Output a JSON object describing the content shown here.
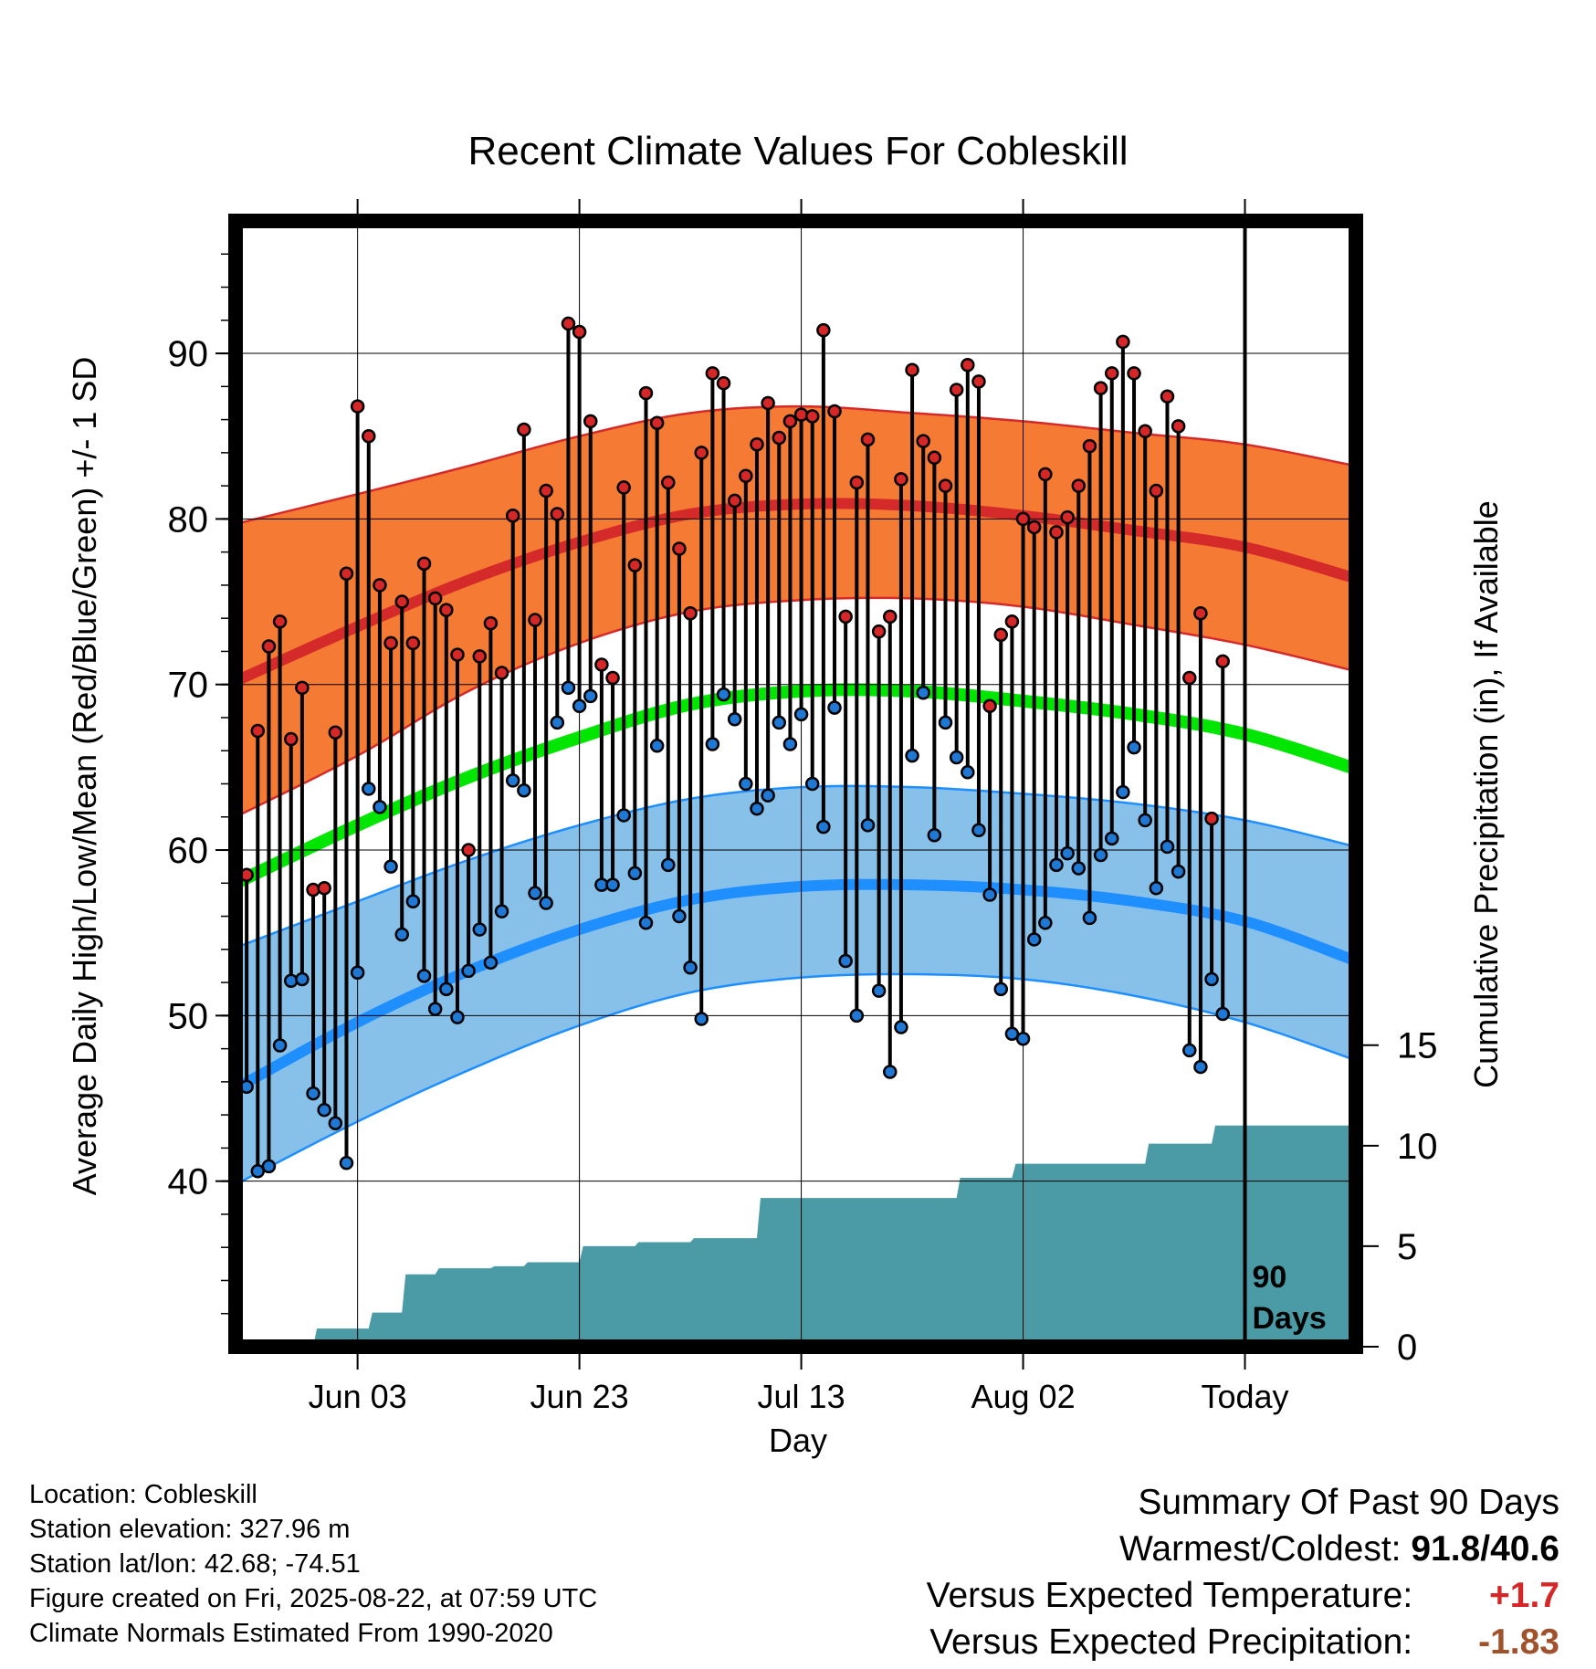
{
  "chart_data": {
    "type": "line",
    "title": "Recent Climate Values For Cobleskill",
    "xlabel": "Day",
    "ylabel_left": "Average Daily High/Low/Mean (Red/Blue/Green) +/- 1 SD",
    "ylabel_right": "Cumulative Precipitation (in), If Available",
    "x_range": [
      "2025-05-23",
      "2025-09-01"
    ],
    "x_ticks": [
      {
        "date": "2025-06-03",
        "label": "Jun 03"
      },
      {
        "date": "2025-06-23",
        "label": "Jun 23"
      },
      {
        "date": "2025-07-13",
        "label": "Jul 13"
      },
      {
        "date": "2025-08-02",
        "label": "Aug 02"
      },
      {
        "date": "2025-08-22",
        "label": "Today"
      }
    ],
    "today": "2025-08-22",
    "today_label": "90 Days",
    "y_left": {
      "min": 30,
      "max": 98,
      "ticks": [
        40,
        50,
        60,
        70,
        80,
        90
      ]
    },
    "y_right": {
      "min": 0,
      "max": 56,
      "ticks": [
        0,
        5,
        10,
        15
      ]
    },
    "grid": true,
    "normals": {
      "x": [
        "2025-05-23",
        "2025-06-03",
        "2025-06-13",
        "2025-06-23",
        "2025-07-03",
        "2025-07-13",
        "2025-07-23",
        "2025-08-02",
        "2025-08-12",
        "2025-08-22",
        "2025-09-01"
      ],
      "high_mean": [
        70.2,
        73.5,
        76.3,
        78.6,
        80.3,
        80.9,
        80.8,
        80.2,
        79.3,
        78.3,
        76.4
      ],
      "high_upper": [
        79.7,
        81.5,
        83.2,
        85.0,
        86.4,
        86.8,
        86.4,
        85.9,
        85.2,
        84.5,
        83.2
      ],
      "high_lower": [
        62.0,
        65.7,
        69.6,
        72.5,
        74.4,
        75.1,
        75.2,
        74.7,
        73.6,
        72.4,
        70.8
      ],
      "low_mean": [
        45.6,
        49.6,
        52.7,
        55.2,
        57.0,
        57.8,
        57.9,
        57.6,
        56.9,
        55.7,
        53.3
      ],
      "low_upper": [
        54.1,
        56.9,
        59.4,
        61.5,
        63.1,
        63.8,
        63.8,
        63.4,
        62.8,
        61.8,
        60.2
      ],
      "low_lower": [
        39.8,
        43.6,
        46.7,
        49.4,
        51.4,
        52.3,
        52.5,
        52.2,
        51.2,
        49.6,
        47.3
      ],
      "mean_mean": [
        58.0,
        61.5,
        64.4,
        66.8,
        68.8,
        69.6,
        69.6,
        69.0,
        68.2,
        67.0,
        64.9
      ],
      "colors": {
        "high_band": "#f57a33",
        "high_line": "#d42a2a",
        "low_band": "#87c1ea",
        "low_line": "#1f8fff",
        "mean_line": "#00e600"
      }
    },
    "daily": {
      "start_date": "2025-05-23",
      "high": [
        57.3,
        58.5,
        67.2,
        72.3,
        73.8,
        66.7,
        69.8,
        57.6,
        57.7,
        67.1,
        76.7,
        86.8,
        85.0,
        76.0,
        72.5,
        75.0,
        72.5,
        77.3,
        75.2,
        74.5,
        71.8,
        60.0,
        71.7,
        73.7,
        70.7,
        80.2,
        85.4,
        73.9,
        81.7,
        80.3,
        91.8,
        91.3,
        85.9,
        71.2,
        70.4,
        81.9,
        77.2,
        87.6,
        85.8,
        82.2,
        78.2,
        74.3,
        84.0,
        88.8,
        88.2,
        81.1,
        82.6,
        84.5,
        87.0,
        84.9,
        85.9,
        86.3,
        86.2,
        91.4,
        86.5,
        74.1,
        82.2,
        84.8,
        73.2,
        74.1,
        82.4,
        89.0,
        84.7,
        83.7,
        82.0,
        87.8,
        89.3,
        88.3,
        68.7,
        73.0,
        73.8,
        80.0,
        79.5,
        82.7,
        79.2,
        80.1,
        82.0,
        84.4,
        87.9,
        88.8,
        90.7,
        88.8,
        85.3,
        81.7,
        87.4,
        85.6,
        70.4,
        74.3,
        61.9,
        71.4
      ],
      "low": [
        45.2,
        45.7,
        40.6,
        40.9,
        48.2,
        52.1,
        52.2,
        45.3,
        44.3,
        43.5,
        41.1,
        52.6,
        63.7,
        62.6,
        59.0,
        54.9,
        56.9,
        52.4,
        50.4,
        51.6,
        49.9,
        52.7,
        55.2,
        53.2,
        56.3,
        64.2,
        63.6,
        57.4,
        56.8,
        67.7,
        69.8,
        68.7,
        69.3,
        57.9,
        57.9,
        62.1,
        58.6,
        55.6,
        66.3,
        59.1,
        56.0,
        52.9,
        49.8,
        66.4,
        69.4,
        67.9,
        64.0,
        62.5,
        63.3,
        67.7,
        66.4,
        68.2,
        64.0,
        61.4,
        68.6,
        53.3,
        50.0,
        61.5,
        51.5,
        46.6,
        49.3,
        65.7,
        69.5,
        60.9,
        67.7,
        65.6,
        64.7,
        61.2,
        57.3,
        51.6,
        48.9,
        48.6,
        54.6,
        55.6,
        59.1,
        59.8,
        58.9,
        55.9,
        59.7,
        60.7,
        63.5,
        66.2,
        61.8,
        57.7,
        60.2,
        58.7,
        47.9,
        46.9,
        52.2,
        50.1
      ],
      "colors": {
        "high_point": "#d62728",
        "low_point": "#1f78d4",
        "stem": "#000000"
      }
    },
    "cumulative_precipitation": {
      "steps": [
        {
          "date": "2025-05-23",
          "value": 0.0
        },
        {
          "date": "2025-05-30",
          "value": 0.9
        },
        {
          "date": "2025-06-04",
          "value": 1.7
        },
        {
          "date": "2025-06-07",
          "value": 3.6
        },
        {
          "date": "2025-06-10",
          "value": 3.9
        },
        {
          "date": "2025-06-15",
          "value": 4.0
        },
        {
          "date": "2025-06-18",
          "value": 4.2
        },
        {
          "date": "2025-06-23",
          "value": 5.0
        },
        {
          "date": "2025-06-28",
          "value": 5.2
        },
        {
          "date": "2025-07-03",
          "value": 5.4
        },
        {
          "date": "2025-07-09",
          "value": 7.4
        },
        {
          "date": "2025-07-27",
          "value": 8.4
        },
        {
          "date": "2025-08-01",
          "value": 9.1
        },
        {
          "date": "2025-08-13",
          "value": 10.1
        },
        {
          "date": "2025-08-19",
          "value": 11.0
        },
        {
          "date": "2025-09-01",
          "value": 11.0
        }
      ],
      "color": "#4a9ba5"
    }
  },
  "info": {
    "location": "Location: Cobleskill",
    "elevation": "Station elevation: 327.96 m",
    "latlon": "Station lat/lon: 42.68; -74.51",
    "created": "Figure created on Fri, 2025-08-22, at 07:59 UTC",
    "normals": "Climate Normals Estimated From 1990-2020"
  },
  "summary": {
    "heading": "Summary Of Past 90 Days",
    "warmest_label": "Warmest/Coldest:",
    "warmest_value": "91.8/40.6",
    "temp_label": "Versus Expected Temperature:",
    "temp_value": "+1.7",
    "precip_label": "Versus Expected Precipitation:",
    "precip_value": "-1.83"
  }
}
